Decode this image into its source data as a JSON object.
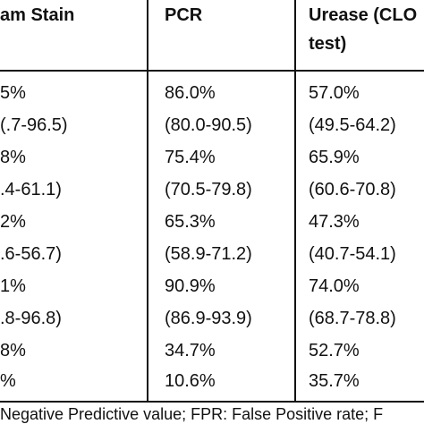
{
  "header": {
    "col1": "am Stain",
    "col2": "PCR",
    "col3_line1": "Urease (CLO",
    "col3_line2": "test)"
  },
  "rows": [
    [
      "5%",
      "86.0%",
      "57.0%"
    ],
    [
      "(.7-96.5)",
      "(80.0-90.5)",
      "(49.5-64.2)"
    ],
    [
      "8%",
      "75.4%",
      "65.9%"
    ],
    [
      ".4-61.1)",
      "(70.5-79.8)",
      "(60.6-70.8)"
    ],
    [
      "2%",
      "65.3%",
      "47.3%"
    ],
    [
      ".6-56.7)",
      "(58.9-71.2)",
      "(40.7-54.1)"
    ],
    [
      "1%",
      "90.9%",
      "74.0%"
    ],
    [
      ".8-96.8)",
      "(86.9-93.9)",
      "(68.7-78.8)"
    ],
    [
      "8%",
      "34.7%",
      "52.7%"
    ],
    [
      "%",
      "10.6%",
      "35.7%"
    ]
  ],
  "footer": "Negative Predictive value; FPR: False Positive rate; F"
}
